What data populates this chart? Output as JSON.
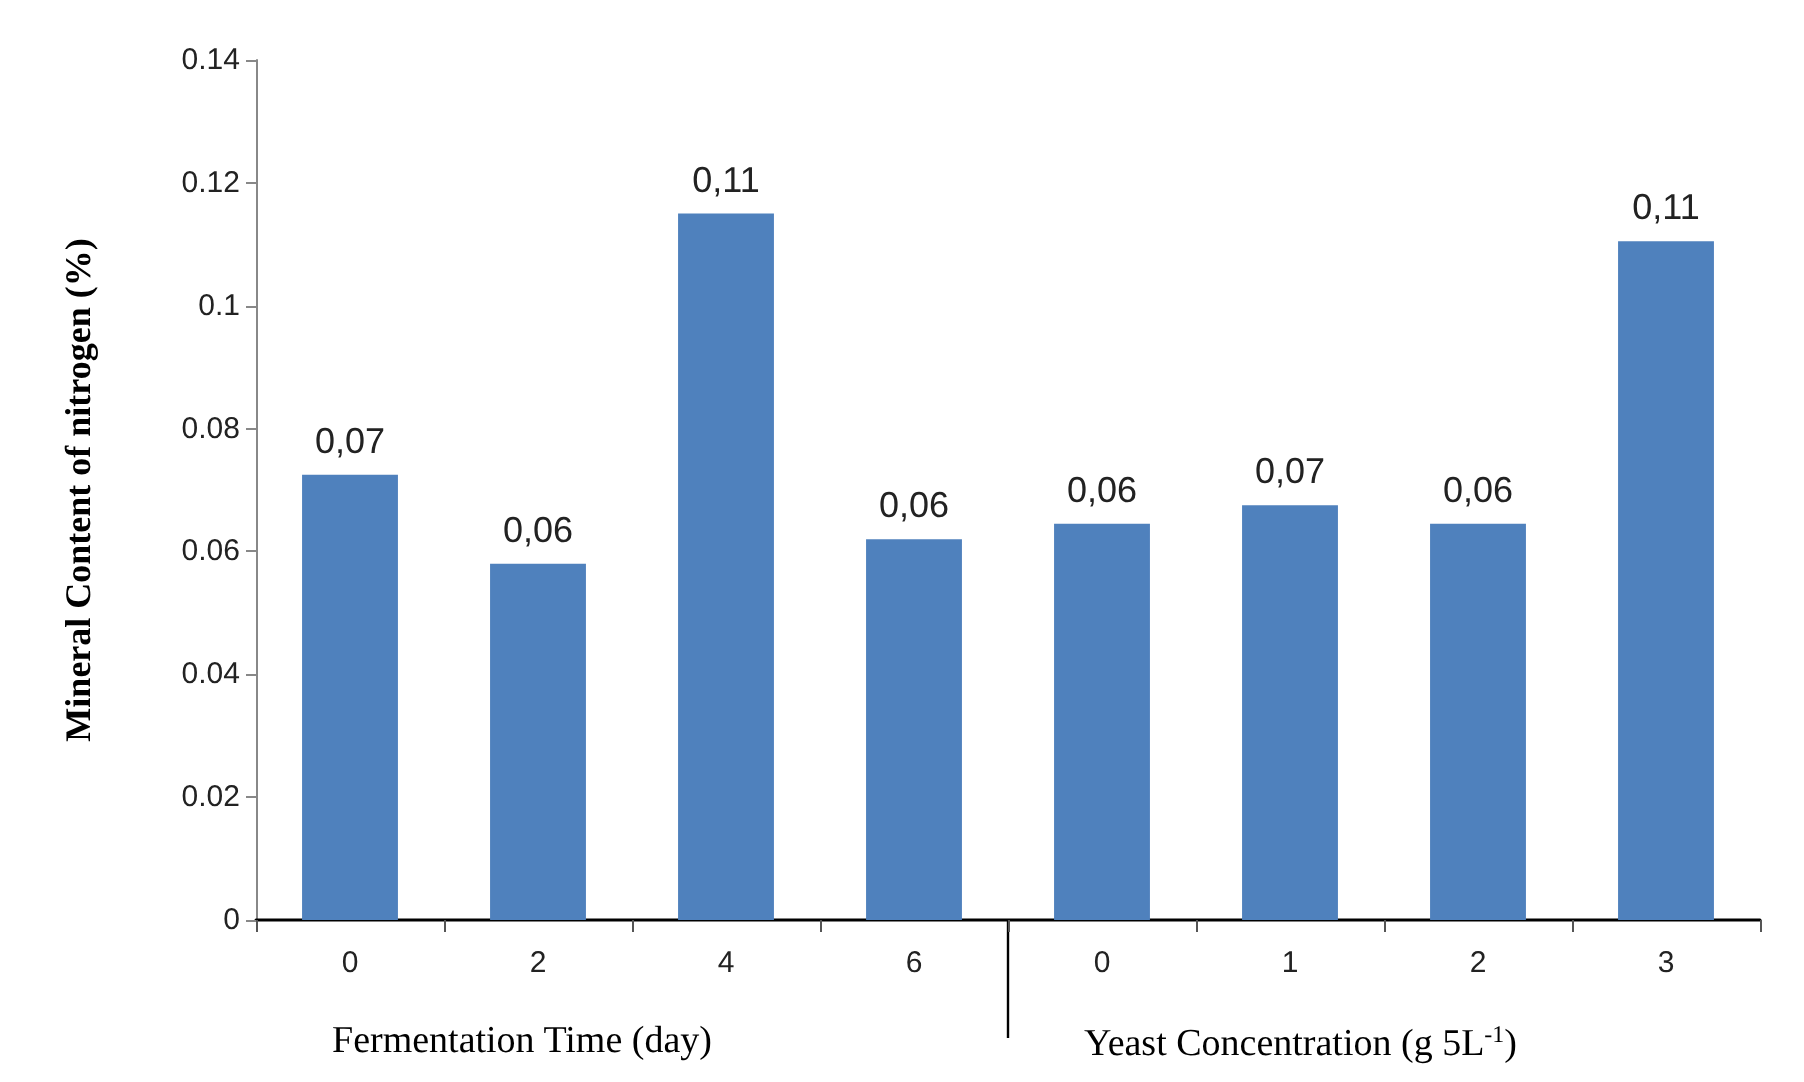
{
  "chart_data": {
    "type": "bar",
    "ylabel": "Mineral Content of nitrogen (%)",
    "categories": [
      "0",
      "2",
      "4",
      "6",
      "0",
      "1",
      "2",
      "3"
    ],
    "values": [
      0.0725,
      0.058,
      0.115,
      0.062,
      0.0645,
      0.0675,
      0.0645,
      0.1105
    ],
    "value_labels": [
      "0,07",
      "0,06",
      "0,11",
      "0,06",
      "0,06",
      "0,07",
      "0,06",
      "0,11"
    ],
    "color": "#4f81bd",
    "ylim": [
      0,
      0.14
    ],
    "yticks": [
      0,
      0.02,
      0.04,
      0.06,
      0.08,
      0.1,
      0.12,
      0.14
    ],
    "annotations": [
      "Fermentation Time (day)",
      "Yeast Concentration (g 5L$^{-1}$)"
    ],
    "grid": false
  }
}
